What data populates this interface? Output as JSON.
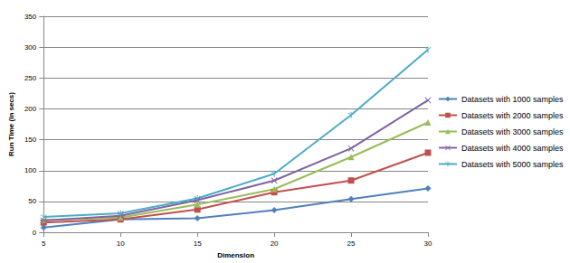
{
  "chart_data": {
    "type": "line",
    "x_label": "Dimension",
    "y_label": "Run Time (in secs)",
    "x": [
      5,
      10,
      15,
      20,
      25,
      30
    ],
    "xlim": [
      5,
      30
    ],
    "xticks": [
      5,
      10,
      15,
      20,
      25,
      30
    ],
    "ylim": [
      0,
      350
    ],
    "yticks": [
      0,
      50,
      100,
      150,
      200,
      250,
      300,
      350
    ],
    "grid": true,
    "legend": "right",
    "series": [
      {
        "name": "Datasets with 1000 samples",
        "color": "#4f81bd",
        "marker": "diamond",
        "values": [
          8,
          21,
          23,
          36,
          54,
          71
        ]
      },
      {
        "name": "Datasets with 2000 samples",
        "color": "#c0504d",
        "marker": "square",
        "values": [
          16,
          21,
          37,
          65,
          84,
          129
        ]
      },
      {
        "name": "Datasets with 3000 samples",
        "color": "#9bbb59",
        "marker": "triangle",
        "values": [
          20,
          24,
          45,
          70,
          122,
          178
        ]
      },
      {
        "name": "Datasets with 4000 samples",
        "color": "#8064a2",
        "marker": "x",
        "values": [
          19,
          27,
          52,
          84,
          136,
          214
        ]
      },
      {
        "name": "Datasets with 5000 samples",
        "color": "#4bacc6",
        "marker": "star",
        "values": [
          25,
          31,
          55,
          95,
          190,
          296
        ]
      }
    ]
  }
}
